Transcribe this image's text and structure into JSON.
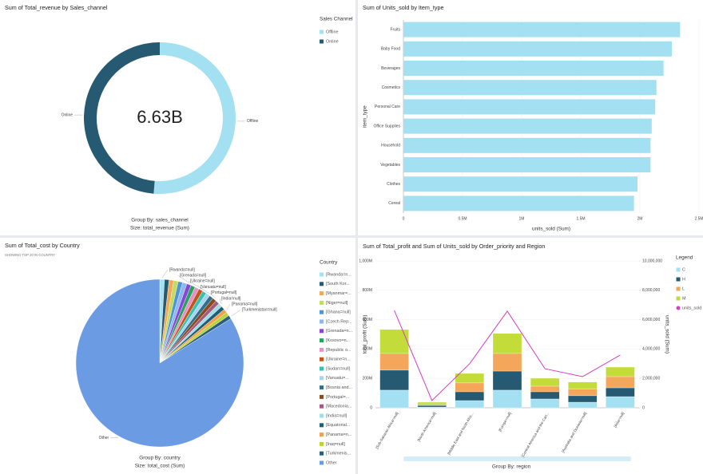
{
  "chart_data": [
    {
      "type": "pie",
      "donut": true,
      "title": "Sum of Total_revenue by Sales_channel",
      "categories": [
        "Offline",
        "Online"
      ],
      "values": [
        3400000000,
        3230000000
      ],
      "colors": [
        "#a3e0f2",
        "#265a73"
      ],
      "center_label": "6.63B",
      "legend_title": "Sales Channel",
      "group_by": "Group By: sales_channel",
      "size_label": "Size: total_revenue (Sum)"
    },
    {
      "type": "bar",
      "orientation": "horizontal",
      "title": "Sum of Units_sold by Item_type",
      "categories": [
        "Fruits",
        "Baby Food",
        "Beverages",
        "Cosmetics",
        "Personal Care",
        "Office Supplies",
        "Household",
        "Vegetables",
        "Clothes",
        "Cereal"
      ],
      "values": [
        2340000,
        2270000,
        2200000,
        2140000,
        2130000,
        2100000,
        2090000,
        2090000,
        1980000,
        1950000
      ],
      "color": "#a3e0f2",
      "xlim": [
        0,
        2500000
      ],
      "xticks": [
        0,
        {
          "value": 500000,
          "label": "0.5M"
        },
        {
          "value": 1000000,
          "label": "1M"
        },
        {
          "value": 1500000,
          "label": "1.5M"
        },
        {
          "value": 2000000,
          "label": "2M"
        },
        {
          "value": 2500000,
          "label": "2.5M"
        }
      ],
      "xlabel": "units_sold (Sum)",
      "ylabel": "item_type",
      "grid": true
    },
    {
      "type": "pie",
      "donut": false,
      "title": "Sum of Total_cost by Country",
      "subtitle": "SHOWING TOP 20 IN COUNTRY",
      "categories": [
        "[Rwanda=n...",
        "[South Kor...",
        "[Myanmar=...",
        "[Niger=null]",
        "[Ghana=null]",
        "[Czech Rep...",
        "[Grenada=n...",
        "[Kosovo=n...",
        "[Republic o...",
        "[Ukraine=n...",
        "[Sudan=null]",
        "[Vanuatu=...",
        "[Bosnia and...",
        "[Portugal=...",
        "[Macedonia...",
        "[India=null]",
        "[Equatorial...",
        "[Panama=n...",
        "[Iraq=null]",
        "[Turkmenis...",
        "Other"
      ],
      "values": [
        0.9,
        0.89,
        0.88,
        0.87,
        0.86,
        0.85,
        0.84,
        0.83,
        0.82,
        0.81,
        0.8,
        0.79,
        0.78,
        0.77,
        0.76,
        0.75,
        0.74,
        0.73,
        0.72,
        0.71,
        83.9
      ],
      "slice_labels": [
        "[Rwanda=null]",
        null,
        null,
        null,
        null,
        null,
        "[Grenada=null]",
        null,
        null,
        "[Ukraine=null]",
        null,
        "[Vanuatu=null]",
        null,
        "[Portugal=null]",
        null,
        "[India=null]",
        null,
        "[Panama=null]",
        null,
        "[Turkmenistan=null]",
        "Other"
      ],
      "colors": [
        "#a3e0f2",
        "#265a73",
        "#f4a65a",
        "#c3dc5a",
        "#4f95d6",
        "#8fb7ef",
        "#8a44d8",
        "#27a35f",
        "#e593c4",
        "#c8531a",
        "#35c2b0",
        "#a9d4ee",
        "#2f6f8f",
        "#8b4a1c",
        "#a8587c",
        "#9fe0e6",
        "#1f5d78",
        "#f0a050",
        "#b8d43a",
        "#2a5e7a",
        "#6a9be3"
      ],
      "legend_title": "Country",
      "group_by": "Group By: country",
      "size_label": "Size: total_cost (Sum)"
    },
    {
      "type": "combo",
      "title": "Sum of Total_profit and Sum of Units_sold by Order_priority and Region",
      "categories": [
        "[Sub-Saharan Africa=null]",
        "[North America=null]",
        "[Middle East and North Afric...",
        "[Europe=null]",
        "[Central America and the Cari...",
        "[Australia and Oceania=null]",
        "[Asia=null]"
      ],
      "series": [
        {
          "name": "C",
          "color": "#a3e0f2",
          "values": [
            120000000,
            5000000,
            49000000,
            120000000,
            60000000,
            38000000,
            76000000
          ]
        },
        {
          "name": "H",
          "color": "#265a73",
          "values": [
            136000000,
            10000000,
            60000000,
            130000000,
            49000000,
            44000000,
            60000000
          ]
        },
        {
          "name": "L",
          "color": "#f4a65a",
          "values": [
            114000000,
            8000000,
            60000000,
            120000000,
            38000000,
            44000000,
            76000000
          ]
        },
        {
          "name": "M",
          "color": "#c3dc3a",
          "values": [
            163000000,
            15000000,
            65000000,
            136000000,
            54000000,
            49000000,
            65000000
          ]
        },
        {
          "name": "units_sold",
          "type": "line",
          "axis": "y2",
          "color": "#d43fc4",
          "values": [
            6630000,
            490000,
            3000000,
            6580000,
            2660000,
            2120000,
            3590000
          ]
        }
      ],
      "ylim": [
        0,
        1000000000
      ],
      "yticks": [
        0,
        {
          "value": 200000000,
          "label": "200M"
        },
        {
          "value": 400000000,
          "label": "400M"
        },
        {
          "value": 600000000,
          "label": "600M"
        },
        {
          "value": 800000000,
          "label": "800M"
        },
        {
          "value": 1000000000,
          "label": "1,000M"
        }
      ],
      "y2lim": [
        0,
        10000000
      ],
      "y2ticks": [
        0,
        {
          "value": 2000000,
          "label": "2,000,000"
        },
        {
          "value": 4000000,
          "label": "4,000,000"
        },
        {
          "value": 6000000,
          "label": "6,000,000"
        },
        {
          "value": 8000000,
          "label": "8,000,000"
        },
        {
          "value": 10000000,
          "label": "10,000,000"
        }
      ],
      "ylabel": "total_profit (Sum)",
      "y2label": "units_sold (Sum)",
      "xlabel": "Group By: region",
      "legend_title": "Legend",
      "grid": true
    }
  ]
}
